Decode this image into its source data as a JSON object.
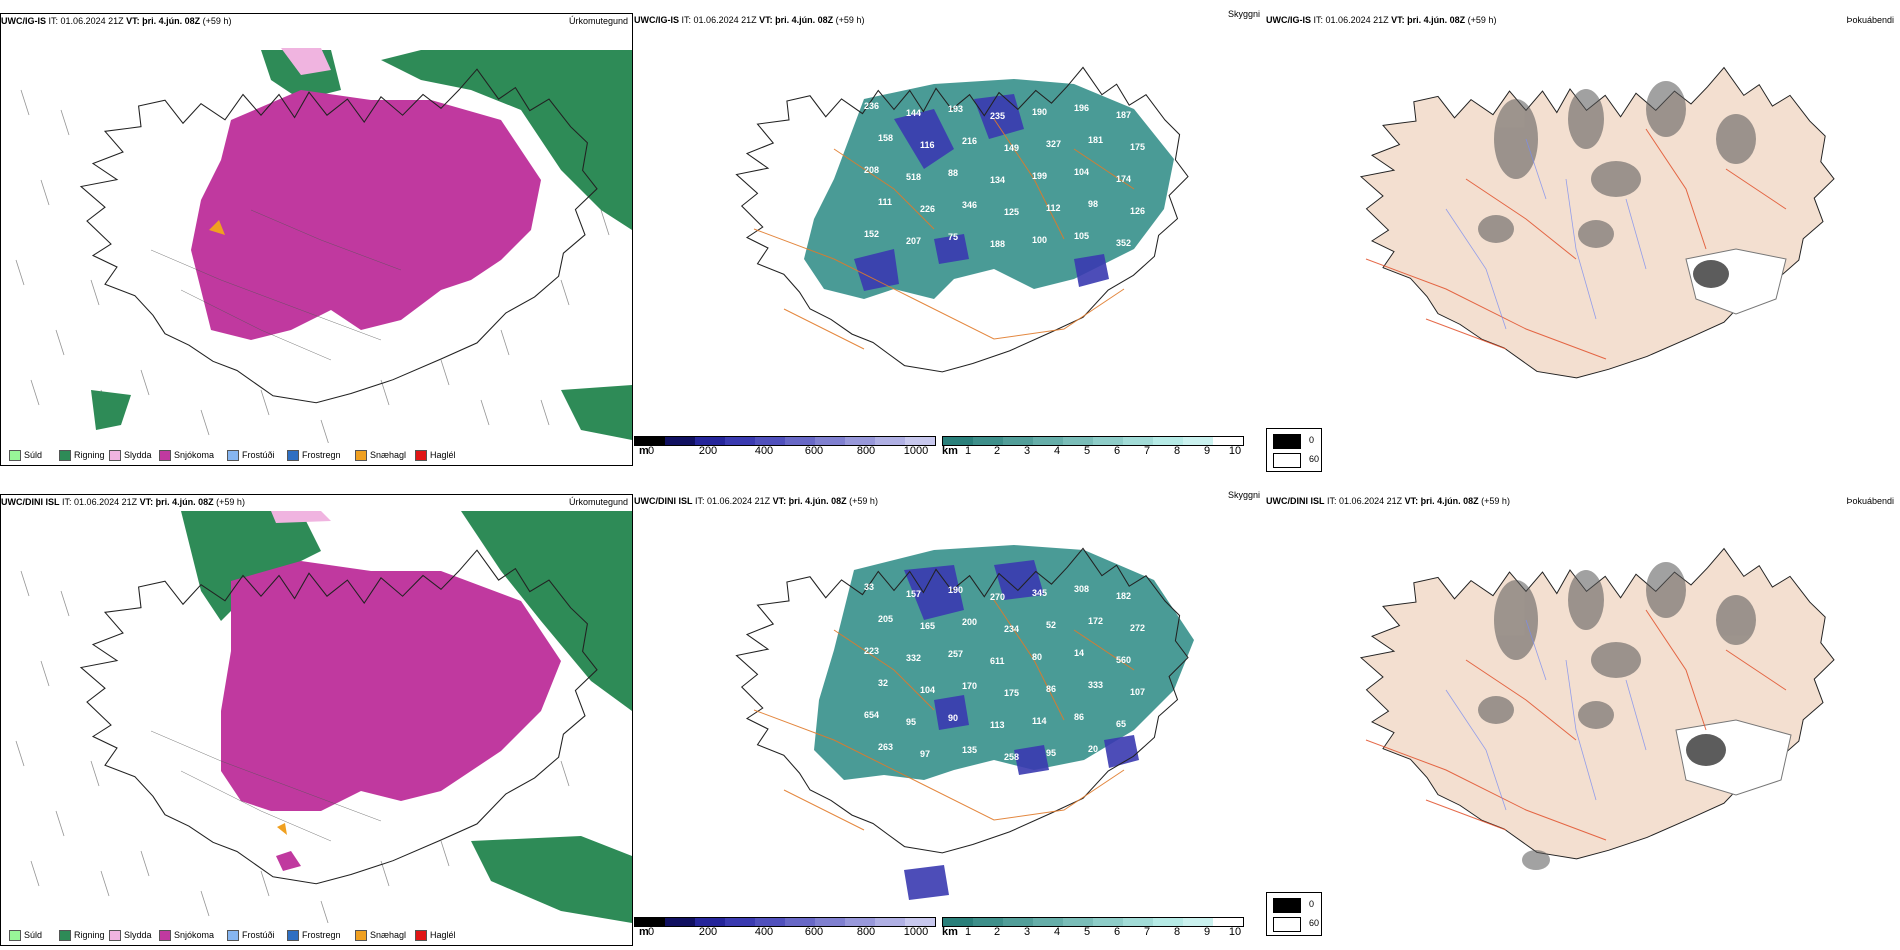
{
  "rows": [
    {
      "precip": {
        "model": "UWC/IG-IS",
        "it_label": "IT:",
        "it": "01.06.2024 21Z",
        "vt_label": "VT:",
        "vt": "þri. 4.jún. 08Z",
        "lead": "(+59 h)",
        "product": "Úrkomutegund"
      },
      "cloud": {
        "model": "UWC/IG-IS",
        "it_label": "IT:",
        "it": "01.06.2024 21Z",
        "vt_label": "VT:",
        "vt": "þri. 4.jún. 08Z",
        "lead": "(+59 h)",
        "product": "Skyggni"
      },
      "fog": {
        "model": "UWC/IG-IS",
        "it_label": "IT:",
        "it": "01.06.2024 21Z",
        "vt_label": "VT:",
        "vt": "þri. 4.jún. 08Z",
        "lead": "(+59 h)",
        "product": "Þokuábendi"
      },
      "cloud_labels": [
        "236",
        "144",
        "193",
        "235",
        "190",
        "196",
        "187",
        "158",
        "116",
        "216",
        "149",
        "327",
        "181",
        "175",
        "208",
        "518",
        "88",
        "134",
        "199",
        "104",
        "174",
        "111",
        "226",
        "346",
        "125",
        "112",
        "98",
        "126",
        "152",
        "207",
        "75",
        "188",
        "100",
        "105",
        "352"
      ]
    },
    {
      "precip": {
        "model": "UWC/DINI ISL",
        "it_label": "IT:",
        "it": "01.06.2024 21Z",
        "vt_label": "VT:",
        "vt": "þri. 4.jún. 08Z",
        "lead": "(+59 h)",
        "product": "Úrkomutegund"
      },
      "cloud": {
        "model": "UWC/DINI ISL",
        "it_label": "IT:",
        "it": "01.06.2024 21Z",
        "vt_label": "VT:",
        "vt": "þri. 4.jún. 08Z",
        "lead": "(+59 h)",
        "product": "Skyggni"
      },
      "fog": {
        "model": "UWC/DINI ISL",
        "it_label": "IT:",
        "it": "01.06.2024 21Z",
        "vt_label": "VT:",
        "vt": "þri. 4.jún. 08Z",
        "lead": "(+59 h)",
        "product": "Þokuábendi"
      },
      "cloud_labels": [
        "33",
        "157",
        "190",
        "270",
        "345",
        "308",
        "182",
        "205",
        "165",
        "200",
        "234",
        "52",
        "172",
        "272",
        "223",
        "332",
        "257",
        "611",
        "80",
        "14",
        "560",
        "32",
        "104",
        "170",
        "175",
        "86",
        "333",
        "107",
        "654",
        "95",
        "90",
        "113",
        "114",
        "86",
        "65",
        "263",
        "97",
        "135",
        "258",
        "95",
        "20"
      ]
    }
  ],
  "precip_legend": [
    {
      "label": "Súld",
      "color": "#98f598"
    },
    {
      "label": "Rigning",
      "color": "#2e8b57"
    },
    {
      "label": "Slydda",
      "color": "#f0b4e0"
    },
    {
      "label": "Snjókoma",
      "color": "#c0399f"
    },
    {
      "label": "Frostúði",
      "color": "#87b6f0"
    },
    {
      "label": "Frostregn",
      "color": "#2f6fc2"
    },
    {
      "label": "Snæhagl",
      "color": "#f0a020"
    },
    {
      "label": "Haglél",
      "color": "#e01515"
    }
  ],
  "cbar_m": {
    "unit": "m",
    "ticks": [
      "0",
      "200",
      "400",
      "600",
      "800",
      "1000"
    ],
    "colors": [
      "#000000",
      "#101060",
      "#25259a",
      "#3a3ab0",
      "#5050bc",
      "#6868c6",
      "#8080d0",
      "#9898da",
      "#b0b0e4",
      "#c8c8ee"
    ]
  },
  "cbar_km": {
    "unit": "km",
    "ticks": [
      "1",
      "2",
      "3",
      "4",
      "5",
      "6",
      "7",
      "8",
      "9",
      "10"
    ],
    "colors": [
      "#2a7f7a",
      "#3e8f8a",
      "#529e99",
      "#66aea9",
      "#7abdb8",
      "#8ecdc8",
      "#a2dcd7",
      "#b6ebe6",
      "#cbf2ef",
      "#ffffff"
    ]
  },
  "fog_legend": [
    {
      "label": "0",
      "color": "#000000"
    },
    {
      "label": "60",
      "color": "#ffffff"
    }
  ],
  "colors": {
    "rain": "#2e8b57",
    "snow": "#c0399f",
    "sleet": "#f0b4e0",
    "hail": "#f0a020",
    "land_fog": "#f3dfd0",
    "cloud_teal": "#2a8a84",
    "cloud_blue": "#3a3ab0",
    "roads": "#e07a2a"
  }
}
